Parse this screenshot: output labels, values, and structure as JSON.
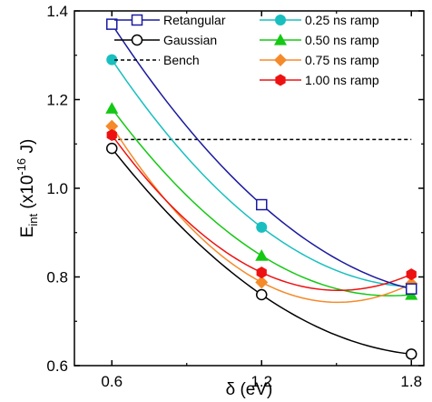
{
  "chart_data": {
    "type": "line",
    "title": "",
    "xlabel": "δ (eV)",
    "ylabel": {
      "base": "E",
      "base_sub": "int",
      "rest": " (x10",
      "exp": "-16",
      "unit": " J)"
    },
    "xlim": [
      0.45,
      1.85
    ],
    "ylim": [
      0.6,
      1.4
    ],
    "xticks": [
      "0.6",
      "1.2",
      "1.8"
    ],
    "xtick_values": [
      0.6,
      1.2,
      1.8
    ],
    "yticks": [
      "0.6",
      "0.8",
      "1.0",
      "1.2",
      "1.4"
    ],
    "ytick_values": [
      0.6,
      0.8,
      1.0,
      1.2,
      1.4
    ],
    "grid": false,
    "legend_placement": "top",
    "x": [
      0.6,
      1.2,
      1.8
    ],
    "series": [
      {
        "name": "Retangular",
        "values": [
          1.37,
          0.963,
          0.773
        ],
        "color": "#1a1aa0",
        "marker": "square-open"
      },
      {
        "name": "Gaussian",
        "values": [
          1.09,
          0.76,
          0.626
        ],
        "color": "#000000",
        "marker": "circle-open"
      },
      {
        "name": "Bench",
        "values": [
          1.11,
          1.11,
          1.11
        ],
        "color": "#000000",
        "marker": "none",
        "dashed": true
      },
      {
        "name": "0.25 ns ramp",
        "values": [
          1.29,
          0.912,
          0.778
        ],
        "color": "#19bfbf",
        "marker": "circle"
      },
      {
        "name": "0.50 ns ramp",
        "values": [
          1.18,
          0.848,
          0.76
        ],
        "color": "#14c814",
        "marker": "triangle"
      },
      {
        "name": "0.75 ns ramp",
        "values": [
          1.14,
          0.788,
          0.785
        ],
        "color": "#f58a2a",
        "marker": "diamond"
      },
      {
        "name": "1.00 ns ramp",
        "values": [
          1.12,
          0.81,
          0.806
        ],
        "color": "#ee1111",
        "marker": "hexagon"
      }
    ]
  }
}
